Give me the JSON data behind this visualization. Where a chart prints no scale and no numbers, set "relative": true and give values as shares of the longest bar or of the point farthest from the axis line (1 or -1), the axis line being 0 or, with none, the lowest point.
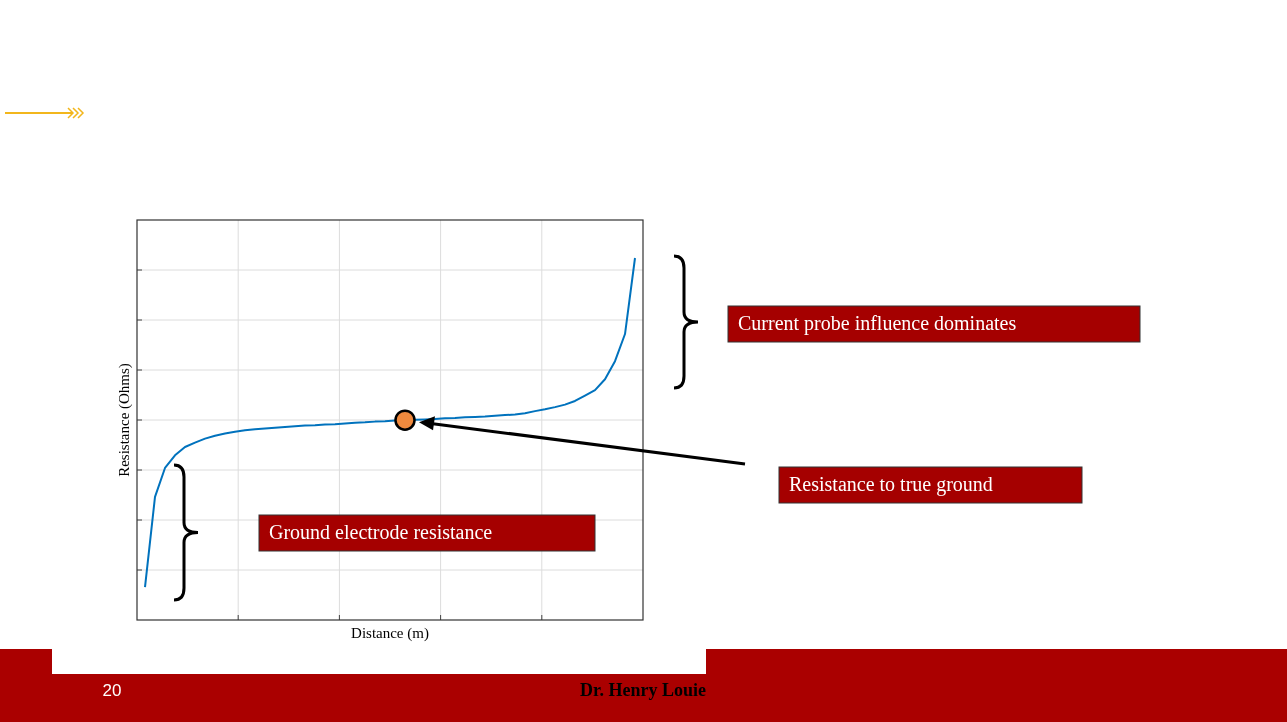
{
  "chart_data": {
    "type": "line",
    "xlabel": "Distance (m)",
    "ylabel": "Resistance (Ohms)",
    "relative": true,
    "grid": true,
    "categories": [
      null,
      null,
      null,
      null,
      null,
      null,
      null,
      null,
      null,
      null,
      null,
      null,
      null,
      null,
      null,
      null,
      null,
      null,
      null,
      null,
      null,
      null,
      null,
      null,
      null,
      null,
      null,
      null,
      null,
      null,
      null,
      null,
      null,
      null,
      null,
      null,
      null,
      null,
      null,
      null,
      null,
      null,
      null,
      null,
      null,
      null,
      null,
      null,
      null,
      null
    ],
    "series": [
      {
        "color": "#0072bd",
        "values": [
          0.091,
          0.34,
          0.42,
          0.455,
          0.478,
          0.49,
          0.501,
          0.509,
          0.515,
          0.52,
          0.524,
          0.527,
          0.529,
          0.531,
          0.533,
          0.535,
          0.537,
          0.538,
          0.54,
          0.541,
          0.543,
          0.545,
          0.546,
          0.548,
          0.549,
          0.551,
          0.552,
          0.553,
          0.554,
          0.555,
          0.557,
          0.558,
          0.56,
          0.561,
          0.562,
          0.564,
          0.566,
          0.568,
          0.571,
          0.577,
          0.582,
          0.588,
          0.595,
          0.605,
          0.62,
          0.635,
          0.665,
          0.715,
          0.79,
          1
        ]
      }
    ],
    "annotations": [
      "Current probe influence dominates",
      "Resistance to true ground",
      "Ground electrode resistance",
      "20",
      "Dr. Henry Louie"
    ]
  }
}
